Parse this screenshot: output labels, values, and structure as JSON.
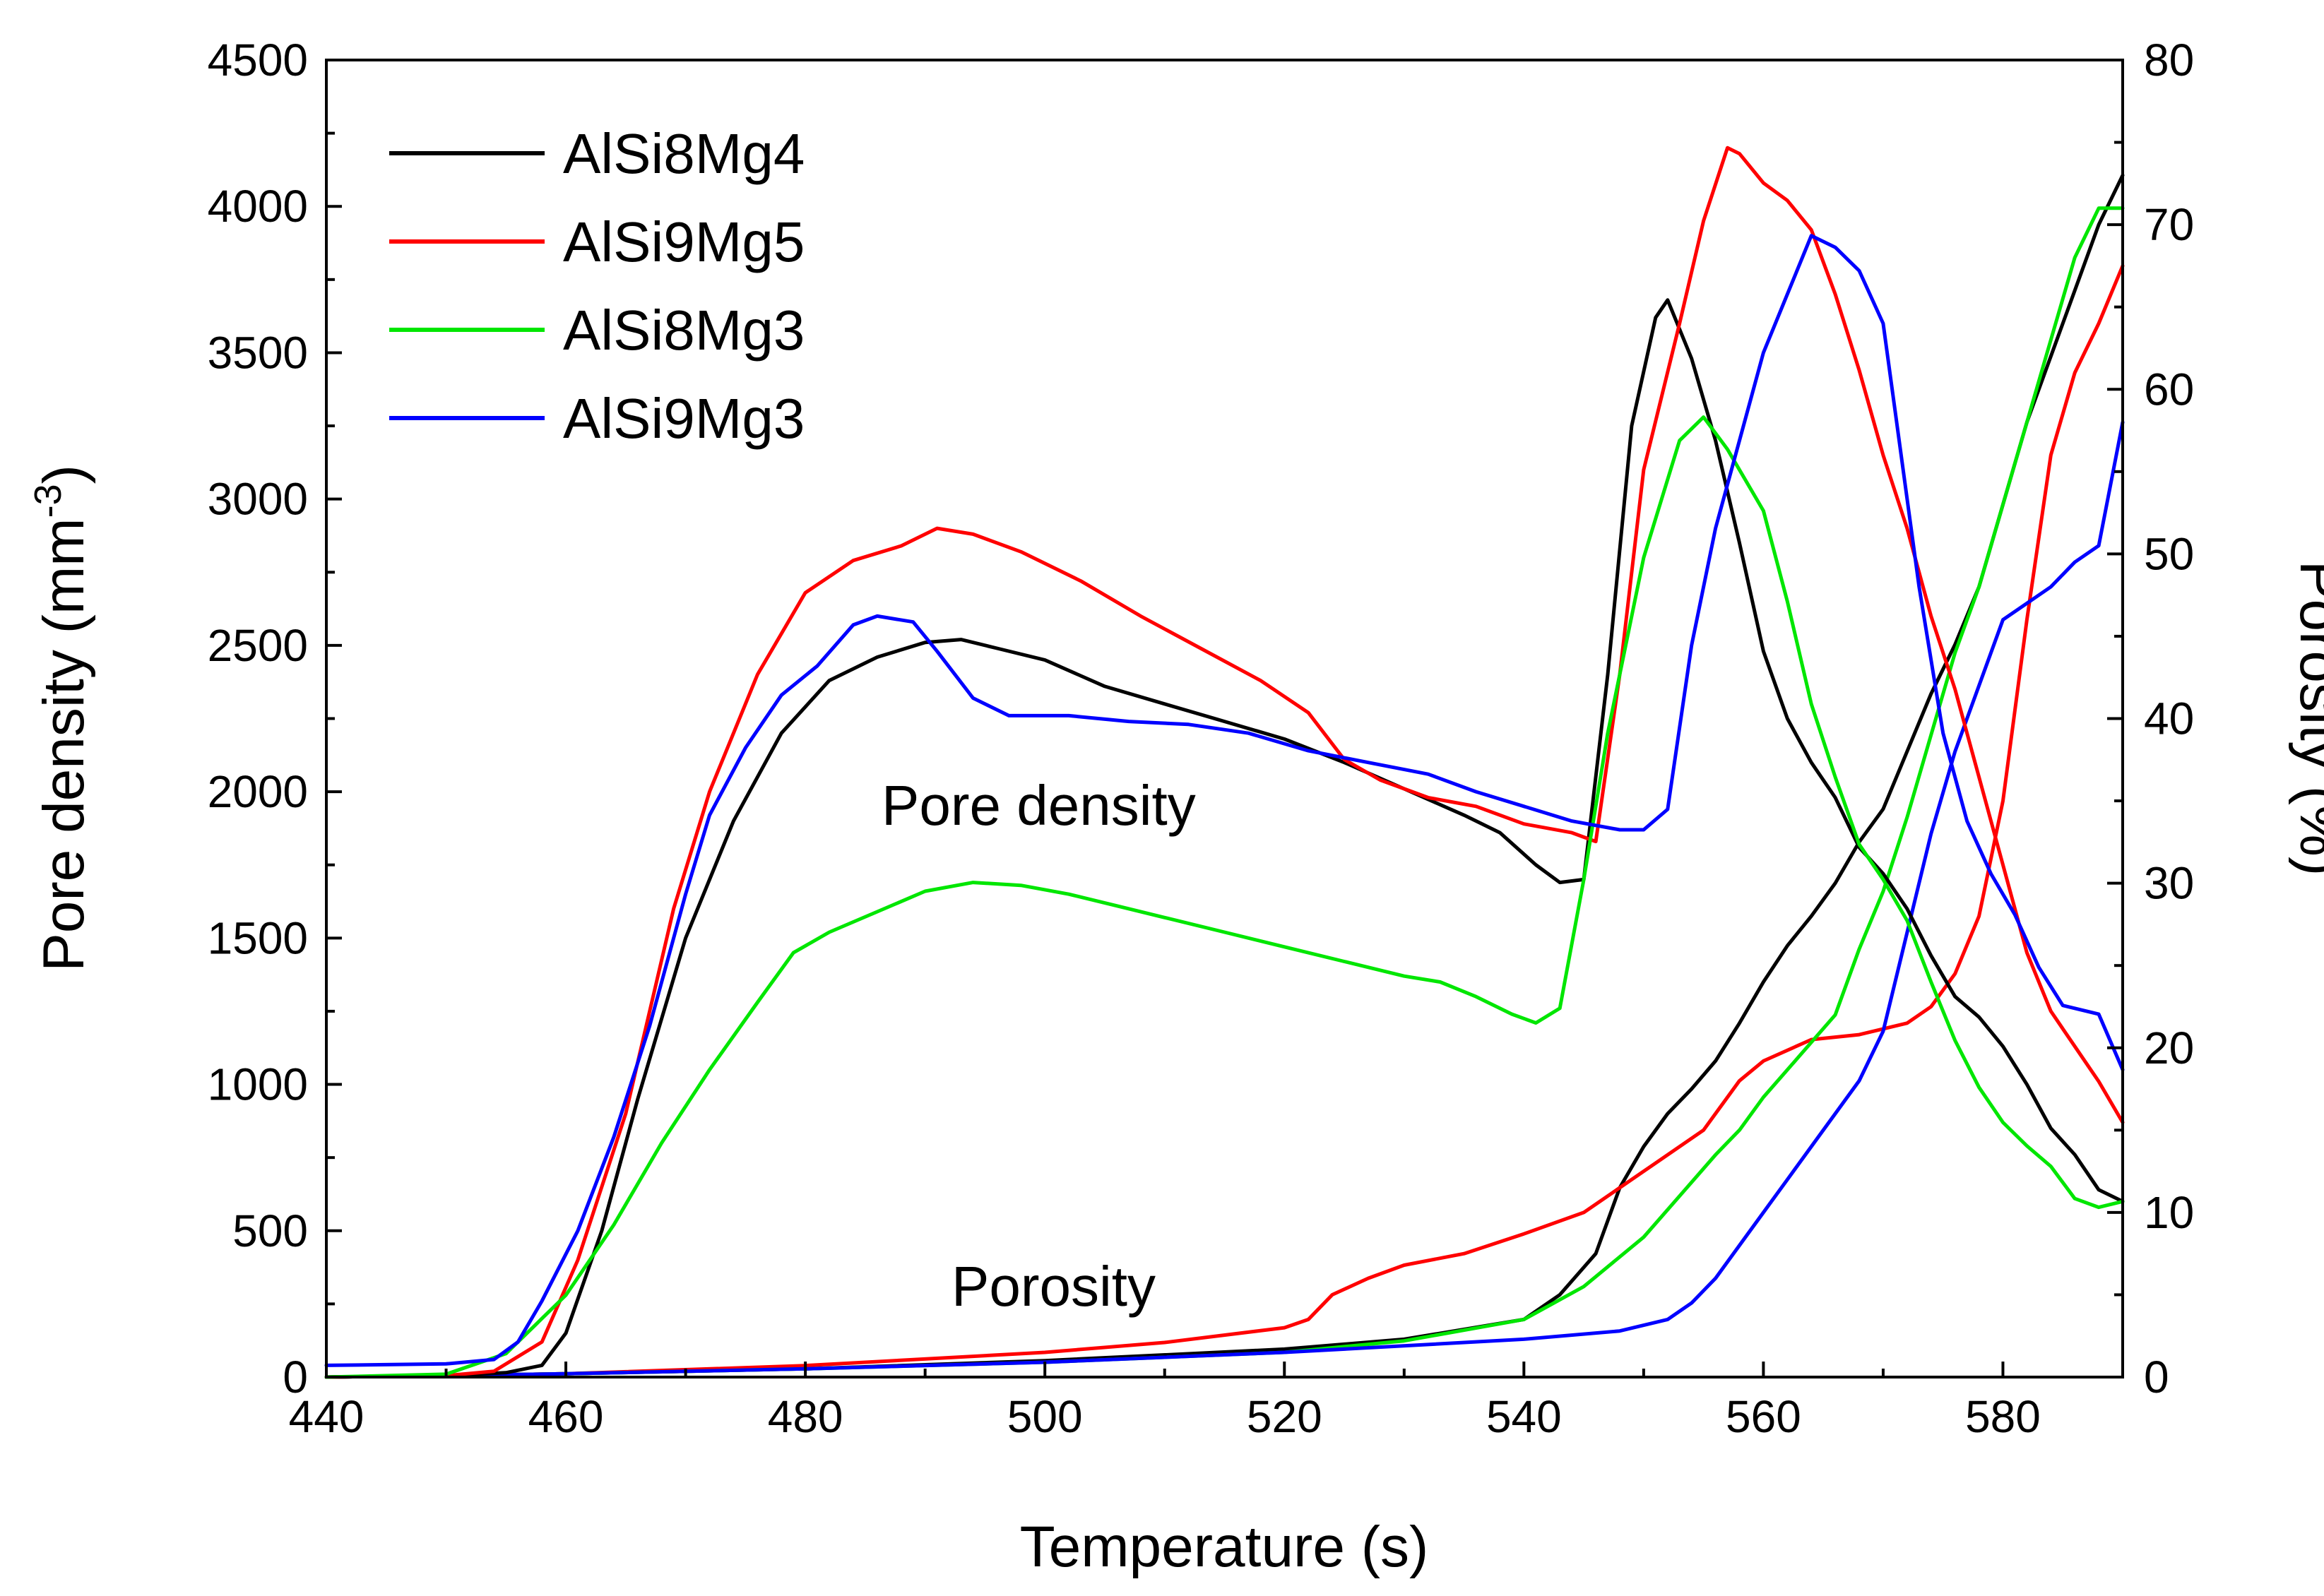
{
  "chart_data": {
    "type": "line",
    "xlabel": "Temperature (s)",
    "ylabel": "Pore density (mm",
    "ylabel_sup": "-3",
    "ylabel_close": ")",
    "y2label": "Porosity (%)",
    "xlim": [
      440,
      590
    ],
    "ylim": [
      0,
      4500
    ],
    "y2lim": [
      0,
      80
    ],
    "x_ticks": [
      "440",
      "460",
      "480",
      "500",
      "520",
      "540",
      "560",
      "580"
    ],
    "y_ticks": [
      "0",
      "500",
      "1000",
      "1500",
      "2000",
      "2500",
      "3000",
      "3500",
      "4000",
      "4500"
    ],
    "y2_ticks": [
      "0",
      "10",
      "20",
      "30",
      "40",
      "50",
      "60",
      "70",
      "80"
    ],
    "legend_position": "top-left",
    "annotations": {
      "pore_density": "Pore density",
      "porosity": "Porosity"
    },
    "series": [
      {
        "name": "AlSi8Mg4",
        "color": "#000000",
        "density": [
          [
            440,
            0
          ],
          [
            450,
            5
          ],
          [
            455,
            15
          ],
          [
            458,
            40
          ],
          [
            460,
            150
          ],
          [
            463,
            500
          ],
          [
            466,
            950
          ],
          [
            470,
            1500
          ],
          [
            474,
            1900
          ],
          [
            478,
            2200
          ],
          [
            482,
            2380
          ],
          [
            486,
            2460
          ],
          [
            490,
            2510
          ],
          [
            493,
            2520
          ],
          [
            496,
            2490
          ],
          [
            500,
            2450
          ],
          [
            505,
            2360
          ],
          [
            510,
            2300
          ],
          [
            515,
            2240
          ],
          [
            520,
            2180
          ],
          [
            525,
            2100
          ],
          [
            530,
            2010
          ],
          [
            535,
            1920
          ],
          [
            538,
            1860
          ],
          [
            541,
            1750
          ],
          [
            543,
            1690
          ],
          [
            545,
            1700
          ],
          [
            547,
            2400
          ],
          [
            549,
            3250
          ],
          [
            551,
            3620
          ],
          [
            552,
            3680
          ],
          [
            554,
            3480
          ],
          [
            556,
            3200
          ],
          [
            558,
            2850
          ],
          [
            560,
            2480
          ],
          [
            562,
            2250
          ],
          [
            564,
            2100
          ],
          [
            566,
            1980
          ],
          [
            568,
            1810
          ],
          [
            570,
            1720
          ],
          [
            572,
            1600
          ],
          [
            574,
            1440
          ],
          [
            576,
            1300
          ],
          [
            578,
            1230
          ],
          [
            580,
            1130
          ],
          [
            582,
            1000
          ],
          [
            584,
            850
          ],
          [
            586,
            760
          ],
          [
            588,
            640
          ],
          [
            590,
            600
          ]
        ],
        "porosity": [
          [
            440,
            0
          ],
          [
            460,
            0.2
          ],
          [
            480,
            0.5
          ],
          [
            500,
            1.0
          ],
          [
            520,
            1.7
          ],
          [
            530,
            2.3
          ],
          [
            540,
            3.5
          ],
          [
            543,
            5
          ],
          [
            546,
            7.5
          ],
          [
            548,
            11.5
          ],
          [
            550,
            14
          ],
          [
            552,
            16
          ],
          [
            554,
            17.5
          ],
          [
            556,
            19.2
          ],
          [
            558,
            21.5
          ],
          [
            560,
            24
          ],
          [
            562,
            26.2
          ],
          [
            564,
            28
          ],
          [
            566,
            30
          ],
          [
            568,
            32.5
          ],
          [
            570,
            34.5
          ],
          [
            572,
            38
          ],
          [
            574,
            41.5
          ],
          [
            576,
            44.5
          ],
          [
            578,
            48
          ],
          [
            580,
            53
          ],
          [
            582,
            58
          ],
          [
            584,
            62
          ],
          [
            586,
            66
          ],
          [
            588,
            70
          ],
          [
            590,
            73
          ]
        ]
      },
      {
        "name": "AlSi9Mg5",
        "color": "#ff0000",
        "density": [
          [
            440,
            0
          ],
          [
            450,
            5
          ],
          [
            454,
            20
          ],
          [
            458,
            120
          ],
          [
            461,
            400
          ],
          [
            465,
            900
          ],
          [
            469,
            1600
          ],
          [
            472,
            2000
          ],
          [
            476,
            2400
          ],
          [
            480,
            2680
          ],
          [
            484,
            2790
          ],
          [
            488,
            2840
          ],
          [
            491,
            2900
          ],
          [
            494,
            2880
          ],
          [
            498,
            2820
          ],
          [
            503,
            2720
          ],
          [
            508,
            2600
          ],
          [
            513,
            2490
          ],
          [
            518,
            2380
          ],
          [
            522,
            2270
          ],
          [
            525,
            2110
          ],
          [
            528,
            2040
          ],
          [
            532,
            1980
          ],
          [
            536,
            1950
          ],
          [
            540,
            1890
          ],
          [
            544,
            1860
          ],
          [
            546,
            1830
          ],
          [
            548,
            2400
          ],
          [
            550,
            3100
          ],
          [
            553,
            3600
          ],
          [
            555,
            3950
          ],
          [
            557,
            4200
          ],
          [
            558,
            4180
          ],
          [
            560,
            4080
          ],
          [
            562,
            4020
          ],
          [
            564,
            3920
          ],
          [
            566,
            3700
          ],
          [
            568,
            3440
          ],
          [
            570,
            3150
          ],
          [
            572,
            2900
          ],
          [
            574,
            2600
          ],
          [
            576,
            2350
          ],
          [
            578,
            2050
          ],
          [
            580,
            1750
          ],
          [
            582,
            1450
          ],
          [
            584,
            1250
          ],
          [
            586,
            1130
          ],
          [
            588,
            1010
          ],
          [
            590,
            870
          ]
        ],
        "porosity": [
          [
            440,
            0
          ],
          [
            460,
            0.2
          ],
          [
            480,
            0.7
          ],
          [
            500,
            1.5
          ],
          [
            510,
            2.1
          ],
          [
            520,
            3.0
          ],
          [
            522,
            3.5
          ],
          [
            524,
            5
          ],
          [
            527,
            6
          ],
          [
            530,
            6.8
          ],
          [
            535,
            7.5
          ],
          [
            540,
            8.7
          ],
          [
            545,
            10
          ],
          [
            550,
            12.5
          ],
          [
            555,
            15
          ],
          [
            558,
            18
          ],
          [
            560,
            19.2
          ],
          [
            564,
            20.5
          ],
          [
            568,
            20.8
          ],
          [
            572,
            21.5
          ],
          [
            574,
            22.5
          ],
          [
            576,
            24.5
          ],
          [
            578,
            28
          ],
          [
            580,
            35
          ],
          [
            582,
            46
          ],
          [
            584,
            56
          ],
          [
            586,
            61
          ],
          [
            588,
            64
          ],
          [
            590,
            67.5
          ]
        ]
      },
      {
        "name": "AlSi8Mg3",
        "color": "#00e600",
        "density": [
          [
            440,
            0
          ],
          [
            450,
            10
          ],
          [
            455,
            80
          ],
          [
            460,
            280
          ],
          [
            464,
            520
          ],
          [
            468,
            800
          ],
          [
            472,
            1050
          ],
          [
            476,
            1280
          ],
          [
            479,
            1450
          ],
          [
            482,
            1520
          ],
          [
            486,
            1590
          ],
          [
            490,
            1660
          ],
          [
            494,
            1690
          ],
          [
            498,
            1680
          ],
          [
            502,
            1650
          ],
          [
            506,
            1610
          ],
          [
            510,
            1570
          ],
          [
            515,
            1520
          ],
          [
            520,
            1470
          ],
          [
            525,
            1420
          ],
          [
            530,
            1370
          ],
          [
            533,
            1350
          ],
          [
            536,
            1300
          ],
          [
            539,
            1240
          ],
          [
            541,
            1210
          ],
          [
            543,
            1260
          ],
          [
            545,
            1700
          ],
          [
            547,
            2200
          ],
          [
            550,
            2800
          ],
          [
            553,
            3200
          ],
          [
            555,
            3280
          ],
          [
            557,
            3170
          ],
          [
            560,
            2960
          ],
          [
            562,
            2650
          ],
          [
            564,
            2300
          ],
          [
            566,
            2050
          ],
          [
            568,
            1820
          ],
          [
            570,
            1700
          ],
          [
            572,
            1560
          ],
          [
            574,
            1350
          ],
          [
            576,
            1150
          ],
          [
            578,
            990
          ],
          [
            580,
            870
          ],
          [
            582,
            790
          ],
          [
            584,
            720
          ],
          [
            586,
            610
          ],
          [
            588,
            580
          ],
          [
            590,
            600
          ]
        ],
        "porosity": [
          [
            440,
            0
          ],
          [
            460,
            0.2
          ],
          [
            480,
            0.5
          ],
          [
            500,
            0.9
          ],
          [
            520,
            1.5
          ],
          [
            530,
            2.2
          ],
          [
            540,
            3.5
          ],
          [
            545,
            5.5
          ],
          [
            550,
            8.5
          ],
          [
            553,
            11
          ],
          [
            556,
            13.5
          ],
          [
            558,
            15
          ],
          [
            560,
            17
          ],
          [
            563,
            19.5
          ],
          [
            566,
            22
          ],
          [
            568,
            26
          ],
          [
            570,
            29.5
          ],
          [
            572,
            34
          ],
          [
            574,
            39
          ],
          [
            576,
            44
          ],
          [
            578,
            48
          ],
          [
            580,
            53
          ],
          [
            582,
            58
          ],
          [
            584,
            63
          ],
          [
            586,
            68
          ],
          [
            588,
            71
          ],
          [
            590,
            71
          ]
        ]
      },
      {
        "name": "AlSi9Mg3",
        "color": "#0000ff",
        "density": [
          [
            440,
            40
          ],
          [
            450,
            45
          ],
          [
            454,
            60
          ],
          [
            456,
            120
          ],
          [
            458,
            260
          ],
          [
            461,
            500
          ],
          [
            464,
            820
          ],
          [
            467,
            1200
          ],
          [
            470,
            1650
          ],
          [
            472,
            1920
          ],
          [
            475,
            2150
          ],
          [
            478,
            2330
          ],
          [
            481,
            2430
          ],
          [
            484,
            2570
          ],
          [
            486,
            2600
          ],
          [
            489,
            2580
          ],
          [
            491,
            2480
          ],
          [
            494,
            2320
          ],
          [
            497,
            2260
          ],
          [
            502,
            2260
          ],
          [
            507,
            2240
          ],
          [
            512,
            2230
          ],
          [
            517,
            2200
          ],
          [
            522,
            2140
          ],
          [
            527,
            2100
          ],
          [
            532,
            2060
          ],
          [
            536,
            2000
          ],
          [
            540,
            1950
          ],
          [
            544,
            1900
          ],
          [
            548,
            1870
          ],
          [
            550,
            1870
          ],
          [
            552,
            1940
          ],
          [
            554,
            2500
          ],
          [
            556,
            2900
          ],
          [
            558,
            3200
          ],
          [
            560,
            3500
          ],
          [
            562,
            3700
          ],
          [
            564,
            3900
          ],
          [
            566,
            3860
          ],
          [
            568,
            3780
          ],
          [
            570,
            3600
          ],
          [
            571,
            3300
          ],
          [
            573,
            2700
          ],
          [
            575,
            2200
          ],
          [
            577,
            1900
          ],
          [
            579,
            1720
          ],
          [
            581,
            1580
          ],
          [
            583,
            1400
          ],
          [
            585,
            1270
          ],
          [
            587,
            1250
          ],
          [
            588,
            1240
          ],
          [
            590,
            1050
          ]
        ],
        "porosity": [
          [
            440,
            0
          ],
          [
            460,
            0.2
          ],
          [
            480,
            0.5
          ],
          [
            500,
            0.9
          ],
          [
            520,
            1.5
          ],
          [
            540,
            2.3
          ],
          [
            548,
            2.8
          ],
          [
            552,
            3.5
          ],
          [
            554,
            4.5
          ],
          [
            556,
            6
          ],
          [
            558,
            8
          ],
          [
            560,
            10
          ],
          [
            562,
            12
          ],
          [
            564,
            14
          ],
          [
            566,
            16
          ],
          [
            568,
            18
          ],
          [
            570,
            21
          ],
          [
            572,
            27
          ],
          [
            574,
            33
          ],
          [
            576,
            38
          ],
          [
            578,
            42
          ],
          [
            580,
            46
          ],
          [
            582,
            47
          ],
          [
            584,
            48
          ],
          [
            586,
            49.5
          ],
          [
            588,
            50.5
          ],
          [
            590,
            58
          ]
        ]
      }
    ]
  }
}
